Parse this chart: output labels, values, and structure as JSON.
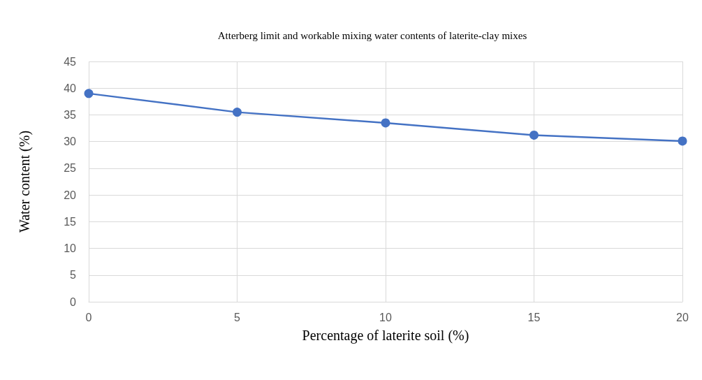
{
  "chart_data": {
    "type": "line",
    "title": "Atterberg limit and workable mixing water contents of laterite-clay mixes",
    "xlabel": "Percentage of laterite soil (%)",
    "ylabel": "Water content (%)",
    "x": [
      0,
      5,
      10,
      15,
      20
    ],
    "series": [
      {
        "color": "#4472c4",
        "values": [
          39,
          35.5,
          33.5,
          31.2,
          30.1
        ]
      }
    ],
    "xlim": [
      0,
      20
    ],
    "xticks": [
      0,
      5,
      10,
      15,
      20
    ],
    "ylim": [
      0,
      45
    ],
    "yticks": [
      0,
      5,
      10,
      15,
      20,
      25,
      30,
      35,
      40,
      45
    ],
    "grid": true,
    "marker": "circle",
    "line_style": "solid"
  }
}
